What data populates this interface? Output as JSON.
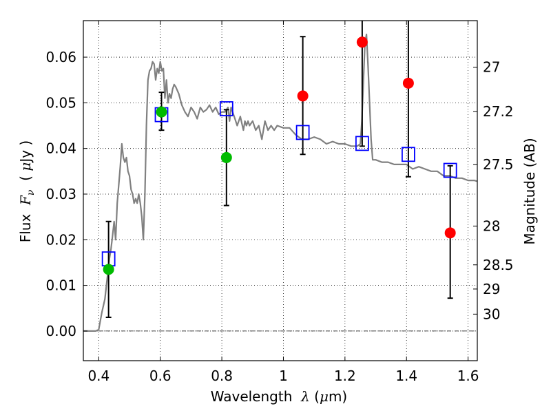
{
  "chart_data": {
    "type": "scatter",
    "xlabel": "Wavelength λ (μm)",
    "ylabel": "Flux F_ν (μJy)",
    "y2label": "Magnitude (AB)",
    "xlim": [
      0.35,
      1.63
    ],
    "ylim": [
      -0.0065,
      0.068
    ],
    "grid": true,
    "x_ticks": [
      0.4,
      0.6,
      0.8,
      1.0,
      1.2,
      1.4,
      1.6
    ],
    "x_tick_labels": [
      "0.4",
      "0.6",
      "0.8",
      "1",
      "1.2",
      "1.4",
      "1.6"
    ],
    "y_ticks": [
      0.0,
      0.01,
      0.02,
      0.03,
      0.04,
      0.05,
      0.06
    ],
    "y_tick_labels": [
      "0.00",
      "0.01",
      "0.02",
      "0.03",
      "0.04",
      "0.05",
      "0.06"
    ],
    "magnitude_ticks": [
      {
        "label": "27",
        "flux": 0.0578
      },
      {
        "label": "27.2",
        "flux": 0.0481
      },
      {
        "label": "27.5",
        "flux": 0.0365
      },
      {
        "label": "28",
        "flux": 0.023
      },
      {
        "label": "28.5",
        "flux": 0.0145
      },
      {
        "label": "29",
        "flux": 0.0092
      },
      {
        "label": "30",
        "flux": 0.0037
      }
    ],
    "model_spectrum": {
      "color": "#808080",
      "x": [
        0.35,
        0.37,
        0.39,
        0.4,
        0.41,
        0.42,
        0.425,
        0.43,
        0.435,
        0.44,
        0.445,
        0.45,
        0.455,
        0.46,
        0.465,
        0.47,
        0.475,
        0.48,
        0.485,
        0.49,
        0.495,
        0.5,
        0.505,
        0.51,
        0.515,
        0.52,
        0.525,
        0.53,
        0.535,
        0.54,
        0.545,
        0.55,
        0.555,
        0.56,
        0.565,
        0.57,
        0.575,
        0.58,
        0.585,
        0.59,
        0.595,
        0.6,
        0.605,
        0.61,
        0.615,
        0.62,
        0.625,
        0.63,
        0.635,
        0.64,
        0.645,
        0.65,
        0.66,
        0.67,
        0.68,
        0.69,
        0.7,
        0.71,
        0.72,
        0.73,
        0.74,
        0.75,
        0.76,
        0.77,
        0.78,
        0.79,
        0.8,
        0.81,
        0.82,
        0.825,
        0.83,
        0.835,
        0.84,
        0.85,
        0.86,
        0.87,
        0.875,
        0.88,
        0.885,
        0.89,
        0.9,
        0.91,
        0.92,
        0.93,
        0.94,
        0.95,
        0.96,
        0.97,
        0.98,
        1.0,
        1.02,
        1.04,
        1.06,
        1.08,
        1.1,
        1.12,
        1.14,
        1.16,
        1.18,
        1.2,
        1.22,
        1.24,
        1.25,
        1.255,
        1.26,
        1.265,
        1.27,
        1.275,
        1.28,
        1.285,
        1.29,
        1.3,
        1.32,
        1.34,
        1.36,
        1.38,
        1.4,
        1.42,
        1.44,
        1.46,
        1.48,
        1.5,
        1.52,
        1.54,
        1.56,
        1.58,
        1.6,
        1.62,
        1.63
      ],
      "y": [
        0.0,
        0.0,
        0.0,
        0.0003,
        0.004,
        0.007,
        0.01,
        0.013,
        0.016,
        0.018,
        0.021,
        0.024,
        0.02,
        0.028,
        0.032,
        0.036,
        0.041,
        0.038,
        0.037,
        0.038,
        0.035,
        0.034,
        0.031,
        0.03,
        0.028,
        0.029,
        0.028,
        0.03,
        0.028,
        0.025,
        0.02,
        0.03,
        0.045,
        0.055,
        0.057,
        0.0575,
        0.059,
        0.0585,
        0.055,
        0.0575,
        0.0565,
        0.059,
        0.057,
        0.0575,
        0.051,
        0.055,
        0.05,
        0.052,
        0.051,
        0.053,
        0.054,
        0.0535,
        0.052,
        0.0495,
        0.048,
        0.047,
        0.049,
        0.048,
        0.0465,
        0.049,
        0.048,
        0.0485,
        0.0495,
        0.048,
        0.049,
        0.0475,
        0.048,
        0.048,
        0.049,
        0.046,
        0.049,
        0.048,
        0.047,
        0.045,
        0.047,
        0.044,
        0.046,
        0.045,
        0.046,
        0.045,
        0.046,
        0.044,
        0.045,
        0.042,
        0.046,
        0.044,
        0.045,
        0.044,
        0.045,
        0.0445,
        0.0445,
        0.043,
        0.042,
        0.042,
        0.0425,
        0.042,
        0.041,
        0.0415,
        0.041,
        0.041,
        0.0405,
        0.0405,
        0.041,
        0.046,
        0.055,
        0.063,
        0.065,
        0.058,
        0.05,
        0.042,
        0.0375,
        0.0375,
        0.037,
        0.037,
        0.0365,
        0.0365,
        0.0365,
        0.0355,
        0.036,
        0.0355,
        0.035,
        0.035,
        0.034,
        0.034,
        0.0335,
        0.0335,
        0.033,
        0.033,
        0.0328
      ]
    },
    "series": [
      {
        "marker": "open-square",
        "color": "#0000ff",
        "x": [
          0.432,
          0.604,
          0.815,
          1.063,
          1.256,
          1.406,
          1.542
        ],
        "y": [
          0.0158,
          0.0474,
          0.0487,
          0.0435,
          0.0411,
          0.0387,
          0.0352
        ]
      },
      {
        "marker": "filled-circle",
        "color": "#00bb00",
        "x": [
          0.432,
          0.604,
          0.815
        ],
        "y": [
          0.0135,
          0.048,
          0.038
        ],
        "yerr_low": [
          0.003,
          0.044,
          0.0275
        ],
        "yerr_high": [
          0.024,
          0.0523,
          0.0485
        ]
      },
      {
        "marker": "filled-circle",
        "color": "#ff0000",
        "x": [
          1.063,
          1.256,
          1.406,
          1.542
        ],
        "y": [
          0.0515,
          0.0633,
          0.0543,
          0.0215
        ],
        "yerr_low": [
          0.0387,
          0.0405,
          0.0338,
          0.0072
        ],
        "yerr_high": [
          0.0645,
          0.068,
          0.068,
          0.0362
        ]
      }
    ],
    "reference_line": {
      "y": 0.0,
      "style": "dash-dot",
      "color": "#000000"
    }
  }
}
